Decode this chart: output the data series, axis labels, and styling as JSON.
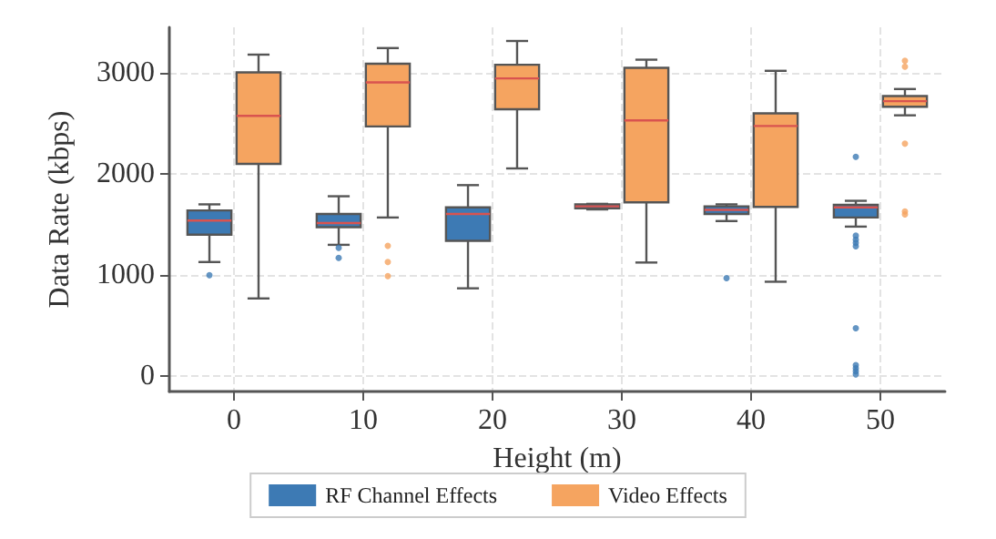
{
  "chart_data": {
    "type": "box",
    "xlabel": "Height (m)",
    "ylabel": "Data Rate (kbps)",
    "categories": [
      "0",
      "10",
      "20",
      "30",
      "40",
      "50"
    ],
    "ylim": [
      -150,
      3450
    ],
    "yticks": [
      0,
      1000,
      2000,
      3000
    ],
    "grid": true,
    "legend": "bottom",
    "series": [
      {
        "name": "RF Channel Effects",
        "color": "#3d7ab4",
        "boxes": [
          {
            "low": 1130,
            "q1": 1400,
            "median": 1540,
            "q3": 1640,
            "high": 1700,
            "outliers": [
              1000
            ]
          },
          {
            "low": 1300,
            "q1": 1475,
            "median": 1515,
            "q3": 1605,
            "high": 1780,
            "outliers": [
              1270,
              1170
            ]
          },
          {
            "low": 870,
            "q1": 1340,
            "median": 1605,
            "q3": 1670,
            "high": 1890
          },
          {
            "low": 1650,
            "q1": 1660,
            "median": 1680,
            "q3": 1700,
            "high": 1705
          },
          {
            "low": 1535,
            "q1": 1605,
            "median": 1645,
            "q3": 1680,
            "high": 1700,
            "outliers": [
              970
            ]
          },
          {
            "low": 1480,
            "q1": 1570,
            "median": 1670,
            "q3": 1695,
            "high": 1735,
            "outliers": [
              2170,
              1390,
              1350,
              1320,
              1285,
              475,
              110,
              80,
              50,
              20
            ]
          }
        ]
      },
      {
        "name": "Video Effects",
        "color": "#f5a460",
        "boxes": [
          {
            "low": 770,
            "q1": 2100,
            "median": 2575,
            "q3": 3005,
            "high": 3180
          },
          {
            "low": 1570,
            "q1": 2470,
            "median": 2905,
            "q3": 3090,
            "high": 3245,
            "outliers": [
              1290,
              1130,
              990
            ]
          },
          {
            "low": 2055,
            "q1": 2640,
            "median": 2945,
            "q3": 3080,
            "high": 3315
          },
          {
            "low": 1125,
            "q1": 1720,
            "median": 2530,
            "q3": 3050,
            "high": 3130
          },
          {
            "low": 935,
            "q1": 1675,
            "median": 2475,
            "q3": 2600,
            "high": 3020
          },
          {
            "low": 2580,
            "q1": 2665,
            "median": 2720,
            "q3": 2770,
            "high": 2840,
            "outliers": [
              3120,
              3060,
              2300,
              1630,
              1600
            ]
          }
        ]
      }
    ]
  }
}
